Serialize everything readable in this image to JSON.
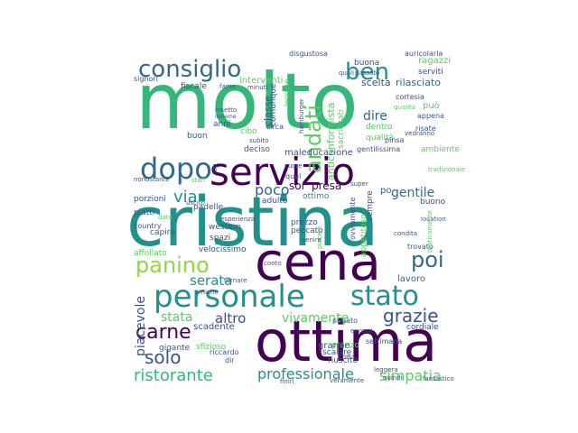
{
  "palette": {
    "dark_purple": "#440154",
    "indigo": "#3b528b",
    "slate": "#31688e",
    "teal": "#21918c",
    "green": "#35b779",
    "mint": "#5ec962",
    "lime": "#90d743",
    "yellow": "#c8e020"
  },
  "words": [
    "molto",
    "cristina",
    "cena",
    "ottima",
    "servizio",
    "personale",
    "stato",
    "dopo",
    "consiglio",
    "ben",
    "andati",
    "panino",
    "carne",
    "poi",
    "solo",
    "grazie",
    "ristorante",
    "professionale",
    "simpatia",
    "via",
    "poco",
    "gentile",
    "serata",
    "stata",
    "vivamente",
    "altro",
    "piacevole",
    "sor",
    "presa",
    "dire",
    "classe",
    "interventi",
    "buona",
    "scelta",
    "rilasciato",
    "ragazzi",
    "serviti",
    "disgustosa",
    "auricolaria",
    "signori",
    "fiscale",
    "può",
    "cortesia",
    "appena",
    "risate",
    "vedranno",
    "dentro",
    "qualità",
    "anticonformista",
    "sacrificati",
    "gentilissima",
    "ambiente",
    "pinsa",
    "hamburger",
    "maleducazione",
    "deciso",
    "subito",
    "cibo",
    "anni",
    "buon",
    "lavoro",
    "location",
    "capire",
    "spazi",
    "western",
    "piatti",
    "porzioni",
    "country",
    "padelle",
    "ottimo",
    "adulto",
    "prezzo",
    "peccato",
    "velocissimo",
    "affollato",
    "conto",
    "appetitoso",
    "sempre",
    "buono",
    "trovato",
    "scadente",
    "gigante",
    "sfizioso",
    "pranzo",
    "scalare",
    "grande",
    "cordiale",
    "pagato",
    "riuscito",
    "settimana",
    "leggera",
    "quindi",
    "fantastico",
    "veramente",
    "finiri",
    "riccardo",
    "dir",
    "insetto",
    "insieme",
    "comunque",
    "circa",
    "leggere",
    "cotta",
    "quel",
    "cuore",
    "esperienza",
    "piacere",
    "venire",
    "condita",
    "praticamente",
    "nonostante",
    "uscito",
    "passato",
    "minuti",
    "fame",
    "quali",
    "top",
    "dato",
    "staff",
    "qualità",
    "tradizionale",
    "ovviamente",
    "super",
    "po",
    "enormi",
    "amiche",
    "tornare"
  ]
}
